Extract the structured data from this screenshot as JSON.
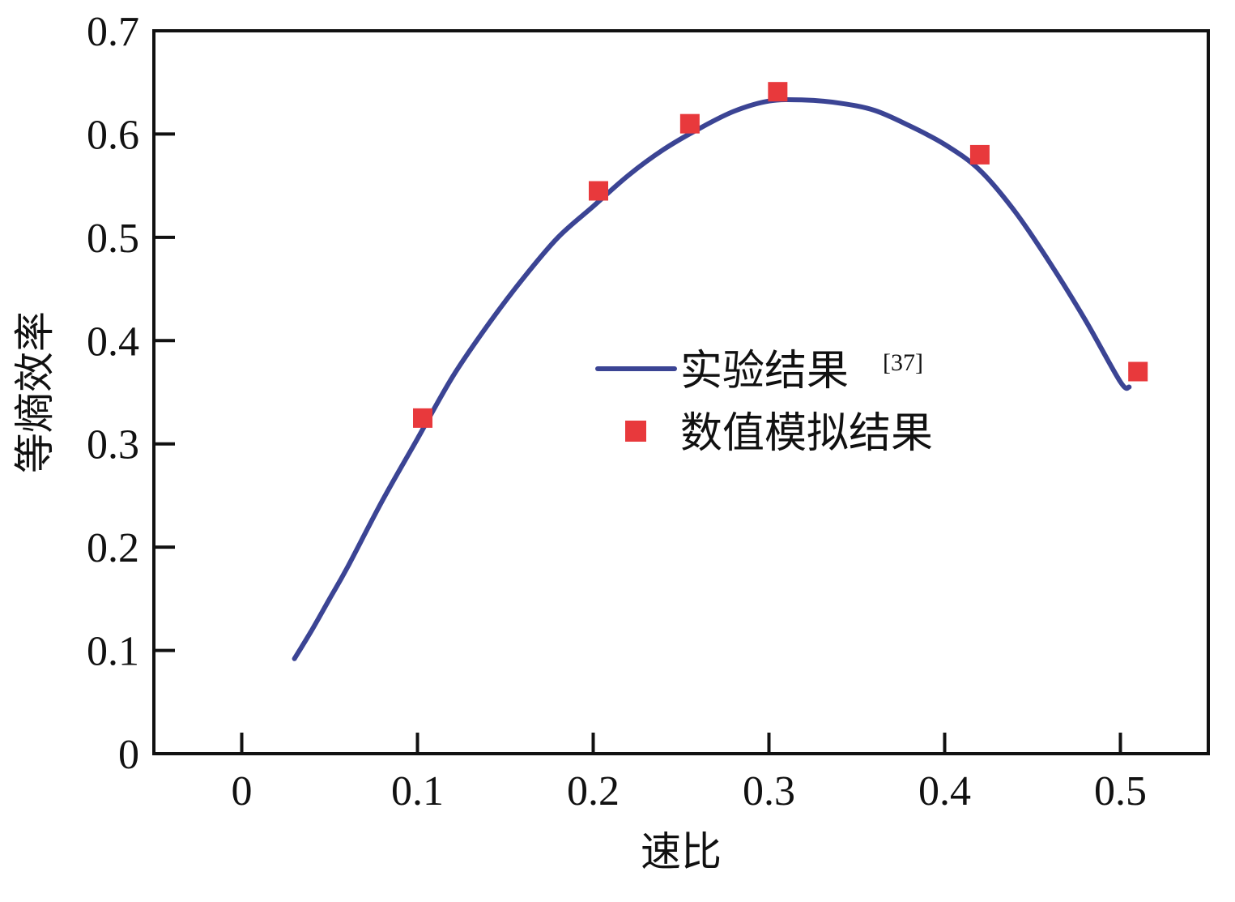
{
  "chart_data": {
    "type": "line",
    "xlabel": "速比",
    "ylabel": "等熵效率",
    "xlim": [
      -0.05,
      0.55
    ],
    "ylim": [
      0,
      0.7
    ],
    "xticks": [
      "0",
      "0.1",
      "0.2",
      "0.3",
      "0.4",
      "0.5"
    ],
    "yticks": [
      "0",
      "0.1",
      "0.2",
      "0.3",
      "0.4",
      "0.5",
      "0.6",
      "0.7"
    ],
    "grid": false,
    "legend_position": "center-right",
    "series": [
      {
        "name": "实验结果",
        "name_superscript": "[37]",
        "kind": "line",
        "color": "#3b4494",
        "x": [
          0.03,
          0.04,
          0.05,
          0.06,
          0.08,
          0.1,
          0.12,
          0.14,
          0.16,
          0.18,
          0.2,
          0.22,
          0.24,
          0.26,
          0.28,
          0.3,
          0.32,
          0.34,
          0.36,
          0.38,
          0.4,
          0.42,
          0.44,
          0.46,
          0.48,
          0.5,
          0.505
        ],
        "y": [
          0.092,
          0.12,
          0.15,
          0.18,
          0.245,
          0.305,
          0.365,
          0.415,
          0.46,
          0.5,
          0.53,
          0.56,
          0.585,
          0.605,
          0.622,
          0.632,
          0.633,
          0.63,
          0.623,
          0.608,
          0.59,
          0.565,
          0.525,
          0.475,
          0.42,
          0.36,
          0.355
        ]
      },
      {
        "name": "数值模拟结果",
        "kind": "scatter",
        "marker": "square",
        "color": "#e8393c",
        "x": [
          0.103,
          0.203,
          0.255,
          0.305,
          0.42,
          0.51
        ],
        "y": [
          0.325,
          0.545,
          0.61,
          0.641,
          0.58,
          0.37
        ]
      }
    ]
  }
}
